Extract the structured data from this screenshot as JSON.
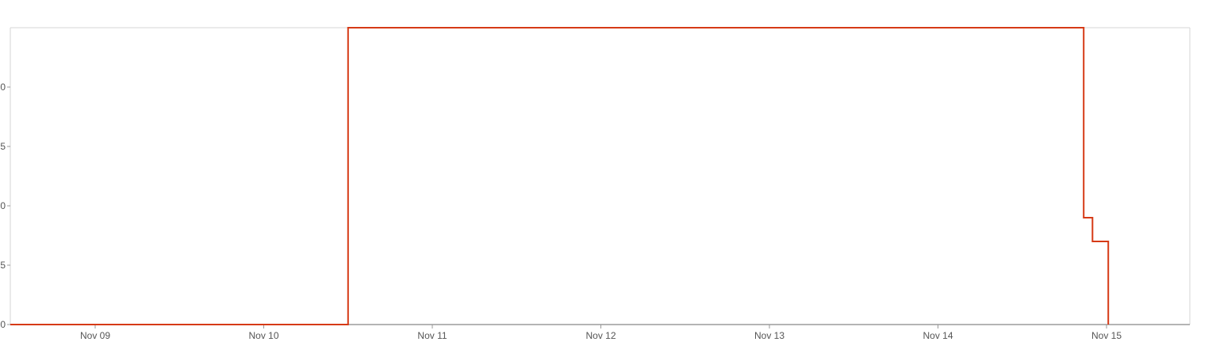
{
  "chart_data": {
    "type": "line",
    "step": true,
    "title": "",
    "xlabel": "",
    "ylabel": "",
    "x_tick_labels": [
      "Nov 09",
      "Nov 10",
      "Nov 11",
      "Nov 12",
      "Nov 13",
      "Nov 14",
      "Nov 15"
    ],
    "y_tick_labels": [
      "0",
      "5",
      "0",
      "5",
      "0"
    ],
    "x_range": [
      "2023-11-08 12:00",
      "2023-11-15 13:00"
    ],
    "series": [
      {
        "color": "#d63a16",
        "points": [
          {
            "x": "2023-11-08 12:00",
            "y": 0
          },
          {
            "x": "2023-11-10 12:00",
            "y": 0
          },
          {
            "x": "2023-11-10 12:00",
            "y": 25
          },
          {
            "x": "2023-11-14 20:45",
            "y": 25
          },
          {
            "x": "2023-11-14 20:45",
            "y": 9
          },
          {
            "x": "2023-11-14 22:00",
            "y": 9
          },
          {
            "x": "2023-11-14 22:00",
            "y": 7
          },
          {
            "x": "2023-11-15 00:15",
            "y": 7
          },
          {
            "x": "2023-11-15 00:15",
            "y": 0
          }
        ]
      }
    ],
    "y_values_note_free": true,
    "ylim": [
      0,
      25
    ],
    "grid": false,
    "legend": "none"
  },
  "colors": {
    "series": "#d63a16",
    "axis": "#888888",
    "frame": "#d6d6d6"
  }
}
